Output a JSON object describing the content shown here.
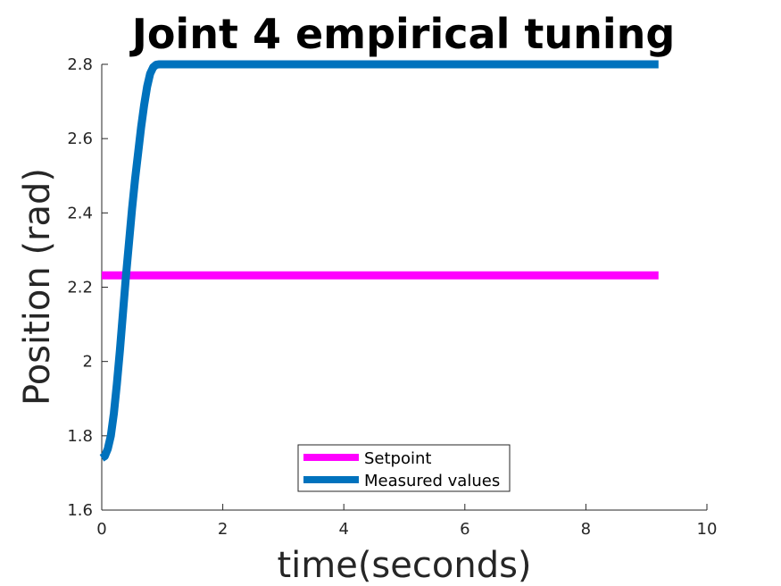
{
  "chart_data": {
    "type": "line",
    "title": "Joint 4 empirical tuning",
    "xlabel": "time(seconds)",
    "ylabel": "Position (rad)",
    "xlim": [
      0,
      10
    ],
    "ylim": [
      1.6,
      2.8
    ],
    "xticks": [
      0,
      2,
      4,
      6,
      8,
      10
    ],
    "yticks": [
      1.6,
      1.8,
      2,
      2.2,
      2.4,
      2.6,
      2.8
    ],
    "xtick_labels": [
      "0",
      "2",
      "4",
      "6",
      "8",
      "10"
    ],
    "ytick_labels": [
      "1.6",
      "1.8",
      "2",
      "2.2",
      "2.4",
      "2.6",
      "2.8"
    ],
    "grid": false,
    "legend_position": "bottom-center",
    "series": [
      {
        "name": "Setpoint",
        "color": "#ff00ff",
        "x": [
          0,
          9.2
        ],
        "y": [
          2.232,
          2.232
        ]
      },
      {
        "name": "Measured values",
        "color": "#0072bd",
        "x": [
          0,
          0.05,
          0.1,
          0.15,
          0.2,
          0.25,
          0.3,
          0.35,
          0.4,
          0.45,
          0.5,
          0.55,
          0.6,
          0.65,
          0.7,
          0.75,
          0.8,
          0.85,
          0.9,
          0.95,
          1.0,
          2.0,
          4.0,
          6.0,
          8.0,
          9.2
        ],
        "y": [
          1.74,
          1.745,
          1.765,
          1.8,
          1.86,
          1.94,
          2.03,
          2.13,
          2.23,
          2.32,
          2.41,
          2.49,
          2.56,
          2.63,
          2.69,
          2.74,
          2.775,
          2.792,
          2.799,
          2.8,
          2.8,
          2.8,
          2.8,
          2.8,
          2.8,
          2.8
        ]
      }
    ]
  }
}
